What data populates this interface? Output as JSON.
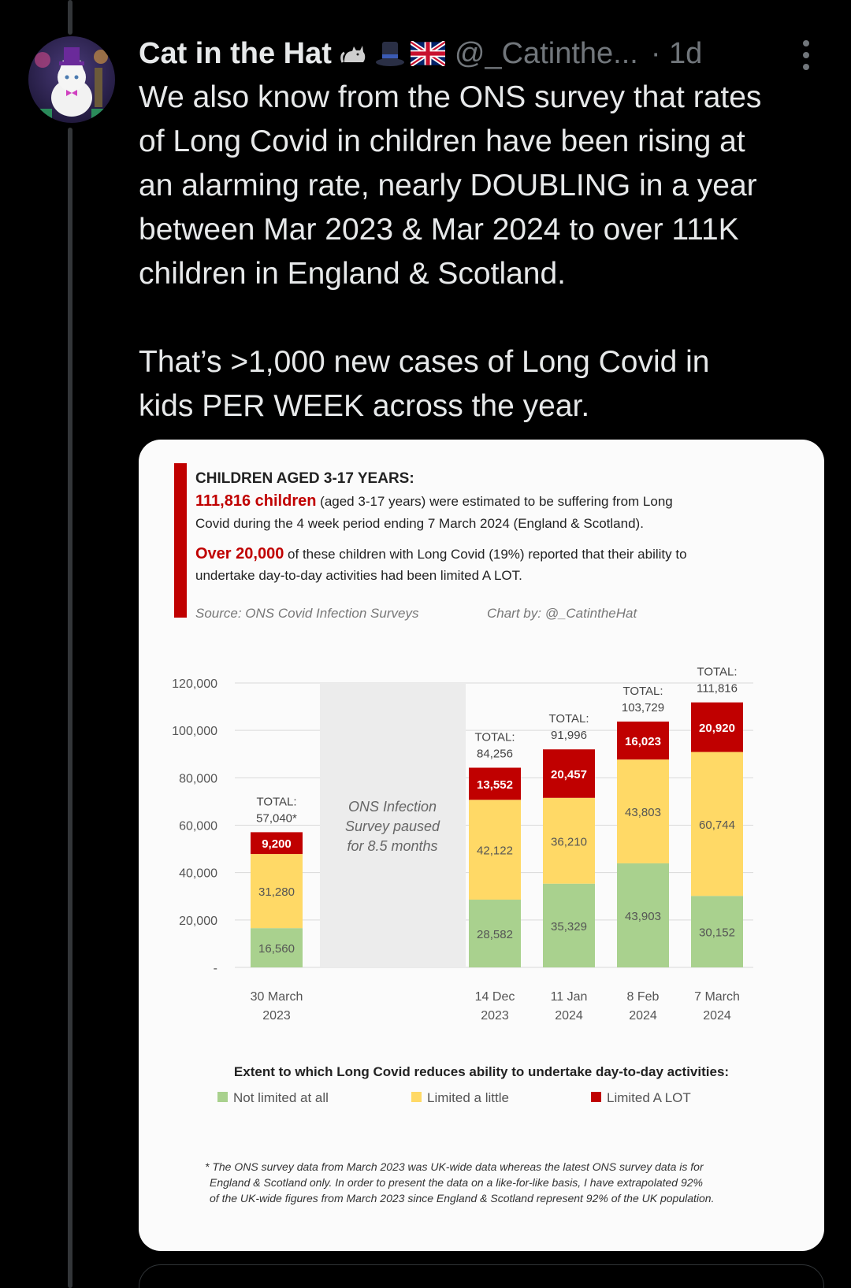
{
  "post": {
    "display_name": "Cat in the Hat",
    "name_emojis": [
      "cat-emoji",
      "top-hat-emoji",
      "uk-flag-emoji"
    ],
    "handle": "@_Catinthe...",
    "time": "· 1d",
    "text_lines": [
      "We also know from the ONS survey that rates",
      "of Long Covid in children have been rising at",
      "an alarming rate, nearly DOUBLING in a year",
      "between Mar 2023 & Mar 2024 to over 111K",
      "children in England & Scotland."
    ],
    "text_lines_2": [
      "That’s >1,000 new cases of Long Covid in",
      "kids PER WEEK across the year."
    ]
  },
  "infographic": {
    "heading": "CHILDREN AGED 3-17 YEARS:",
    "line1_highlight": "111,816 children",
    "line1_rest": " (aged 3-17 years) were estimated to be suffering from Long",
    "line2": "Covid during the 4 week period ending 7 March 2024 (England & Scotland).",
    "line3_highlight": "Over 20,000",
    "line3_rest": " of these children with Long Covid  (19%) reported that their ability to",
    "line4": "undertake day-to-day activities had been limited A LOT.",
    "source": "Source: ONS Covid Infection Surveys",
    "chart_by": "Chart by: @_CatintheHat",
    "paused_note": [
      "ONS Infection",
      "Survey paused",
      "for 8.5 months"
    ],
    "legend_title": "Extent to which Long Covid reduces ability to undertake day-to-day activities:",
    "footnote": [
      "* The ONS survey data from March 2023 was UK-wide data whereas the latest ONS survey data is for",
      "England & Scotland only. In order to present the data on a like-for-like basis, I have extrapolated 92%",
      "of the UK-wide figures from March 2023 since England & Scotland represent 92% of the UK population."
    ],
    "total_label": "TOTAL:"
  },
  "chart_data": {
    "type": "bar",
    "stacked": true,
    "categories": [
      "30 March 2023",
      "14 Dec 2023",
      "11 Jan 2024",
      "8 Feb 2024",
      "7 March 2024"
    ],
    "category_lines": [
      [
        "30 March",
        "2023"
      ],
      [
        "14 Dec",
        "2023"
      ],
      [
        "11 Jan",
        "2024"
      ],
      [
        "8 Feb",
        "2024"
      ],
      [
        "7 March",
        "2024"
      ]
    ],
    "series": [
      {
        "name": "Not limited at all",
        "color": "#a9d18e",
        "values": [
          16560,
          28582,
          35329,
          43903,
          30152
        ]
      },
      {
        "name": "Limited a little",
        "color": "#ffd966",
        "values": [
          31280,
          42122,
          36210,
          43803,
          60744
        ]
      },
      {
        "name": "Limited A LOT",
        "color": "#c00000",
        "values": [
          9200,
          13552,
          20457,
          16023,
          20920
        ]
      }
    ],
    "totals": [
      "57,040*",
      "84,256",
      "91,996",
      "103,729",
      "111,816"
    ],
    "ylim": [
      0,
      120000
    ],
    "yticks": [
      0,
      20000,
      40000,
      60000,
      80000,
      100000,
      120000
    ],
    "ytick_labels": [
      "-",
      "20,000",
      "40,000",
      "60,000",
      "80,000",
      "100,000",
      "120,000"
    ],
    "grid": true,
    "legend_position": "bottom"
  }
}
